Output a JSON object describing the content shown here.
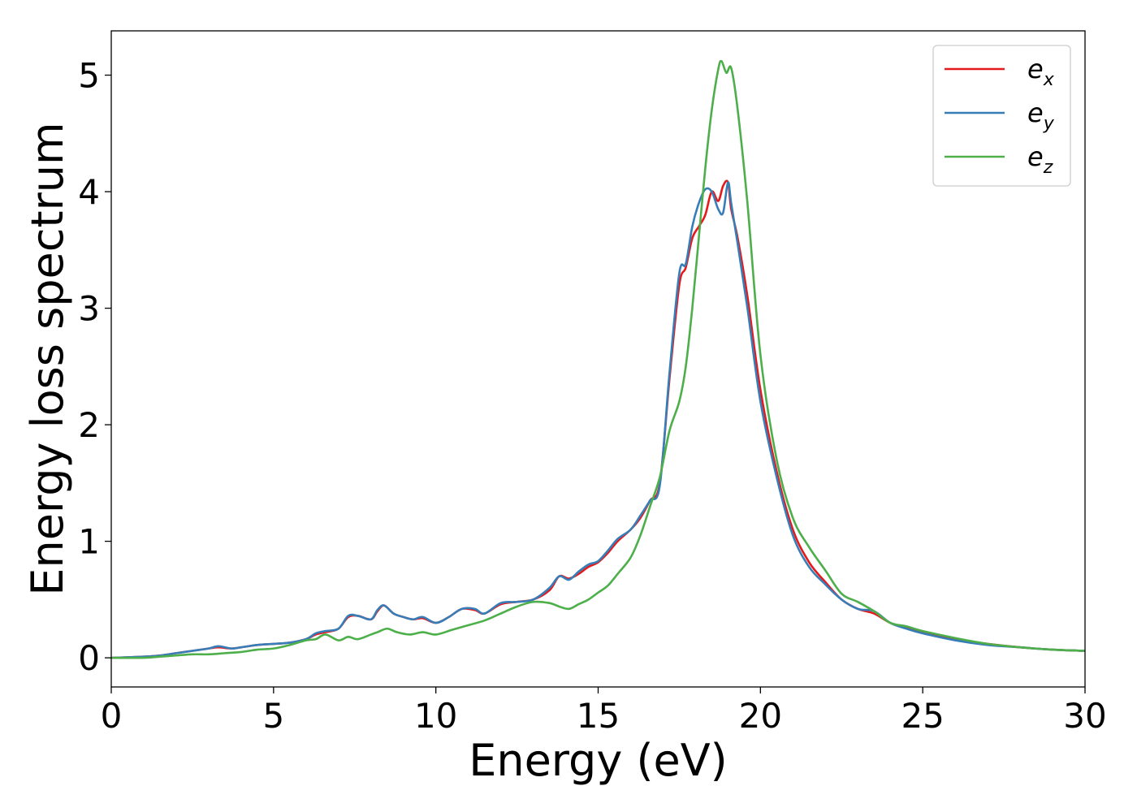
{
  "chart_data": {
    "type": "line",
    "xlabel": "Energy (eV)",
    "ylabel": "Energy loss spectrum",
    "xlim": [
      0,
      30
    ],
    "ylim": [
      -0.25,
      5.38
    ],
    "xticks": [
      0,
      5,
      10,
      15,
      20,
      25,
      30
    ],
    "xtick_labels": [
      "0",
      "5",
      "10",
      "15",
      "20",
      "25",
      "30"
    ],
    "yticks": [
      0,
      1,
      2,
      3,
      4,
      5
    ],
    "ytick_labels": [
      "0",
      "1",
      "2",
      "3",
      "4",
      "5"
    ],
    "grid": false,
    "legend_position": "top-right",
    "series": [
      {
        "name": "e",
        "subscript": "x",
        "color": "#e41a1c",
        "x": [
          0,
          1,
          1.5,
          2,
          2.5,
          3,
          3.3,
          3.7,
          4,
          4.5,
          5,
          5.5,
          6,
          6.3,
          6.6,
          7,
          7.3,
          7.6,
          8,
          8.2,
          8.4,
          8.7,
          9,
          9.3,
          9.6,
          10,
          10.4,
          10.8,
          11.2,
          11.5,
          12,
          12.5,
          13,
          13.5,
          13.8,
          14.1,
          14.4,
          14.7,
          15,
          15.3,
          15.6,
          16,
          16.3,
          16.6,
          16.9,
          17.2,
          17.5,
          17.7,
          17.9,
          18.1,
          18.3,
          18.5,
          18.7,
          18.85,
          19,
          19.1,
          19.3,
          19.6,
          20,
          20.5,
          21,
          21.5,
          22,
          22.5,
          23,
          23.5,
          24,
          24.5,
          25,
          26,
          27,
          28,
          29,
          30
        ],
        "values": [
          0,
          0.01,
          0.02,
          0.04,
          0.06,
          0.08,
          0.09,
          0.08,
          0.09,
          0.11,
          0.12,
          0.13,
          0.16,
          0.2,
          0.22,
          0.25,
          0.35,
          0.36,
          0.33,
          0.4,
          0.45,
          0.38,
          0.35,
          0.33,
          0.34,
          0.3,
          0.35,
          0.42,
          0.41,
          0.38,
          0.46,
          0.48,
          0.5,
          0.58,
          0.7,
          0.68,
          0.72,
          0.78,
          0.82,
          0.9,
          1.0,
          1.1,
          1.2,
          1.35,
          1.5,
          2.4,
          3.2,
          3.35,
          3.6,
          3.7,
          3.8,
          4.0,
          3.92,
          4.05,
          4.08,
          3.85,
          3.6,
          3.1,
          2.3,
          1.6,
          1.1,
          0.82,
          0.65,
          0.5,
          0.42,
          0.38,
          0.3,
          0.26,
          0.22,
          0.16,
          0.12,
          0.09,
          0.07,
          0.06
        ]
      },
      {
        "name": "e",
        "subscript": "y",
        "color": "#377eb8",
        "x": [
          0,
          1,
          1.5,
          2,
          2.5,
          3,
          3.3,
          3.7,
          4,
          4.5,
          5,
          5.5,
          6,
          6.3,
          6.6,
          7,
          7.3,
          7.6,
          8,
          8.2,
          8.4,
          8.7,
          9,
          9.3,
          9.6,
          10,
          10.4,
          10.8,
          11.2,
          11.5,
          12,
          12.5,
          13,
          13.5,
          13.8,
          14.1,
          14.4,
          14.7,
          15,
          15.3,
          15.6,
          16,
          16.3,
          16.6,
          16.9,
          17.2,
          17.5,
          17.7,
          17.9,
          18.1,
          18.3,
          18.5,
          18.7,
          18.85,
          19,
          19.1,
          19.3,
          19.6,
          20,
          20.5,
          21,
          21.5,
          22,
          22.5,
          23,
          23.5,
          24,
          24.5,
          25,
          26,
          27,
          28,
          29,
          30
        ],
        "values": [
          0,
          0.01,
          0.02,
          0.04,
          0.06,
          0.08,
          0.1,
          0.08,
          0.09,
          0.11,
          0.12,
          0.13,
          0.16,
          0.21,
          0.23,
          0.25,
          0.36,
          0.36,
          0.33,
          0.41,
          0.45,
          0.38,
          0.35,
          0.33,
          0.35,
          0.3,
          0.35,
          0.42,
          0.42,
          0.38,
          0.47,
          0.48,
          0.5,
          0.6,
          0.7,
          0.67,
          0.74,
          0.8,
          0.83,
          0.92,
          1.02,
          1.1,
          1.22,
          1.35,
          1.48,
          2.45,
          3.3,
          3.38,
          3.7,
          3.9,
          4.02,
          4.0,
          3.85,
          3.82,
          4.08,
          3.9,
          3.55,
          3.0,
          2.2,
          1.55,
          1.05,
          0.78,
          0.63,
          0.5,
          0.42,
          0.4,
          0.3,
          0.25,
          0.21,
          0.15,
          0.11,
          0.09,
          0.07,
          0.06
        ]
      },
      {
        "name": "e",
        "subscript": "z",
        "color": "#4daf4a",
        "x": [
          0,
          1,
          1.5,
          2,
          2.5,
          3,
          3.5,
          4,
          4.5,
          5,
          5.5,
          6,
          6.3,
          6.6,
          7,
          7.3,
          7.6,
          8,
          8.2,
          8.5,
          8.8,
          9.2,
          9.6,
          10,
          10.5,
          11,
          11.5,
          12,
          12.5,
          13,
          13.5,
          13.8,
          14.1,
          14.4,
          14.7,
          15,
          15.3,
          15.6,
          16,
          16.3,
          16.6,
          16.9,
          17.2,
          17.5,
          17.7,
          17.9,
          18.1,
          18.3,
          18.5,
          18.7,
          18.8,
          18.95,
          19.1,
          19.3,
          19.6,
          20,
          20.5,
          21,
          21.5,
          22,
          22.5,
          23,
          23.5,
          24,
          24.5,
          25,
          26,
          27,
          28,
          29,
          30
        ],
        "values": [
          0,
          0.0,
          0.01,
          0.02,
          0.03,
          0.03,
          0.04,
          0.05,
          0.07,
          0.08,
          0.11,
          0.15,
          0.16,
          0.2,
          0.15,
          0.18,
          0.16,
          0.2,
          0.22,
          0.25,
          0.22,
          0.2,
          0.22,
          0.2,
          0.24,
          0.28,
          0.32,
          0.38,
          0.44,
          0.48,
          0.47,
          0.44,
          0.42,
          0.46,
          0.5,
          0.56,
          0.62,
          0.72,
          0.86,
          1.05,
          1.3,
          1.55,
          1.95,
          2.2,
          2.5,
          3.0,
          3.6,
          4.2,
          4.7,
          5.05,
          5.12,
          5.02,
          5.06,
          4.7,
          3.9,
          2.6,
          1.7,
          1.2,
          0.95,
          0.75,
          0.55,
          0.48,
          0.4,
          0.3,
          0.27,
          0.23,
          0.17,
          0.12,
          0.09,
          0.07,
          0.06
        ]
      }
    ]
  }
}
